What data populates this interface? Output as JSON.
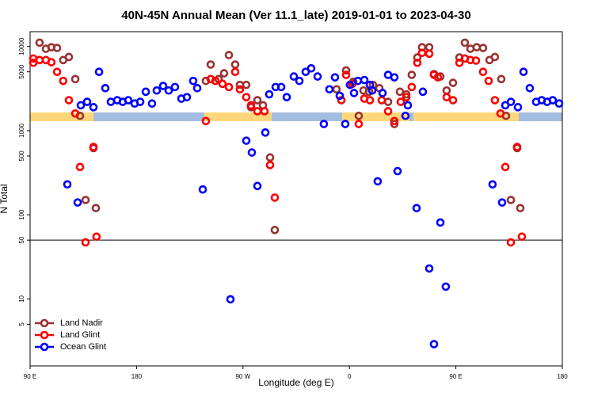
{
  "chart_data": {
    "type": "scatter",
    "title": "40N-45N Annual Mean (Ver 11.1_late)   2019-01-01 to 2023-04-30",
    "x_label": "Longitude (deg E)",
    "y_label": "N Total",
    "log_y": true,
    "hline": 50,
    "legend": "bottom-left",
    "xlim": [
      90,
      540
    ],
    "ylim": [
      1.6,
      15000
    ],
    "xticks": [
      {
        "value": 90,
        "label": "90 E"
      },
      180,
      {
        "value": 270,
        "label": "90 W"
      },
      {
        "value": 360,
        "label": "0"
      },
      {
        "value": 450,
        "label": "90 E"
      },
      {
        "value": 540,
        "label": "180"
      }
    ],
    "yticks": [
      5,
      10,
      50,
      100,
      500,
      1000,
      5000,
      10000
    ],
    "series": [
      {
        "name": "Land Nadir",
        "color": "#993333",
        "x": [
          98,
          103.4,
          108,
          112.8,
          118,
          122.8,
          128.2,
          132.2,
          136.9,
          143.6,
          145.6,
          238.6,
          242.7,
          249.4,
          254,
          258.1,
          263.4,
          267.4,
          272.8,
          276.8,
          282.2,
          286.9,
          292.9,
          296.9,
          349.1,
          357.2,
          363.2,
          367.9,
          371.9,
          376.6,
          379.9,
          385.3,
          392.7,
          398,
          402.7,
          408.1,
          412.7,
          417.4,
          421.4,
          427.5,
          431.5,
          436.9,
          442.2,
          447.6,
          453,
          457.6,
          462.3,
          467.6,
          473,
          478.4,
          483,
          488.4,
          492.4,
          496.5,
          501.8,
          504.5
        ],
        "values": [
          11100,
          9400,
          9800,
          9600,
          6900,
          7500,
          4100,
          1500,
          150,
          620,
          120,
          3900,
          6100,
          4100,
          4800,
          7900,
          6100,
          3500,
          3500,
          1900,
          2300,
          2000,
          480,
          66,
          3100,
          5200,
          3800,
          1500,
          3000,
          2900,
          3500,
          3200,
          2200,
          1200,
          2900,
          2700,
          4600,
          7400,
          9800,
          9800,
          4700,
          4400,
          3000,
          3700,
          7400,
          11100,
          9400,
          9800,
          9600,
          6900,
          7500,
          4100,
          1500,
          150,
          620,
          120
        ]
      },
      {
        "name": "Land Glint",
        "color": "#ff0000",
        "x": [
          92.7,
          92.7,
          98,
          103.4,
          108,
          112.8,
          118,
          122.8,
          128.2,
          132.2,
          136.9,
          143.6,
          146.2,
          238.6,
          242.7,
          246.7,
          252.7,
          258.1,
          263.4,
          267.4,
          272.8,
          276.8,
          282.2,
          288.2,
          292.9,
          296.9,
          353.2,
          357.2,
          362.5,
          367.9,
          372.6,
          377.3,
          387.3,
          392.7,
          398,
          403.4,
          408.1,
          412.7,
          417.4,
          421.4,
          427.5,
          431.5,
          434.8,
          442.2,
          447.6,
          453,
          457.6,
          462.3,
          467,
          473,
          477.7,
          483,
          487.7,
          491.8,
          496.5,
          501.8,
          505.8
        ],
        "values": [
          7200,
          6400,
          6900,
          6900,
          6500,
          5000,
          3900,
          2300,
          1600,
          370,
          47,
          640,
          55,
          1300,
          4100,
          3900,
          3600,
          3300,
          5000,
          3100,
          2500,
          2000,
          1700,
          1700,
          390,
          160,
          2300,
          4600,
          3600,
          1200,
          2400,
          2300,
          2300,
          1700,
          1300,
          2200,
          2500,
          3300,
          6400,
          8400,
          8200,
          4600,
          4300,
          2500,
          2300,
          6400,
          7200,
          6900,
          6800,
          5000,
          3900,
          2300,
          1600,
          370,
          47,
          640,
          55
        ]
      },
      {
        "name": "Ocean Glint",
        "color": "#0000ff",
        "x": [
          121.5,
          130.2,
          132.9,
          138.2,
          143.6,
          148.3,
          153.6,
          158.3,
          163.7,
          168.3,
          173,
          178.4,
          183.1,
          187.8,
          193.1,
          197.1,
          202.5,
          207.2,
          212.5,
          217.9,
          222.6,
          227.9,
          231.3,
          236,
          259.4,
          272.8,
          277.5,
          282.2,
          288.9,
          292.2,
          297.6,
          302.3,
          307,
          313,
          317.7,
          323,
          327.7,
          333.1,
          338.4,
          343.1,
          347.8,
          351.8,
          356.5,
          360.5,
          363.9,
          367.2,
          372.6,
          377.3,
          379.3,
          383.9,
          388,
          392.7,
          398,
          400.7,
          407.4,
          409.4,
          416.8,
          422.1,
          427.5,
          431.5,
          436.9,
          441.5,
          481,
          489.1,
          491.8,
          496.5,
          502.5,
          507.2,
          512.5,
          517.9,
          522.6,
          527.2,
          531.9,
          537.3
        ],
        "values": [
          230,
          140,
          2000,
          2200,
          1900,
          5000,
          3200,
          2200,
          2300,
          2200,
          2300,
          2100,
          2200,
          2900,
          2100,
          3000,
          3400,
          3000,
          3300,
          2400,
          2500,
          3900,
          3200,
          200,
          9.9,
          760,
          550,
          220,
          950,
          2700,
          3300,
          3300,
          2500,
          4400,
          3900,
          5000,
          5500,
          4400,
          1200,
          3100,
          4300,
          2600,
          1200,
          3500,
          2800,
          3900,
          4000,
          3500,
          3000,
          250,
          2800,
          4600,
          4300,
          330,
          1500,
          2000,
          120,
          2900,
          23,
          2.9,
          81,
          14,
          230,
          140,
          2000,
          2200,
          1900,
          5000,
          3200,
          2200,
          2300,
          2200,
          2300,
          2100
        ]
      }
    ]
  }
}
